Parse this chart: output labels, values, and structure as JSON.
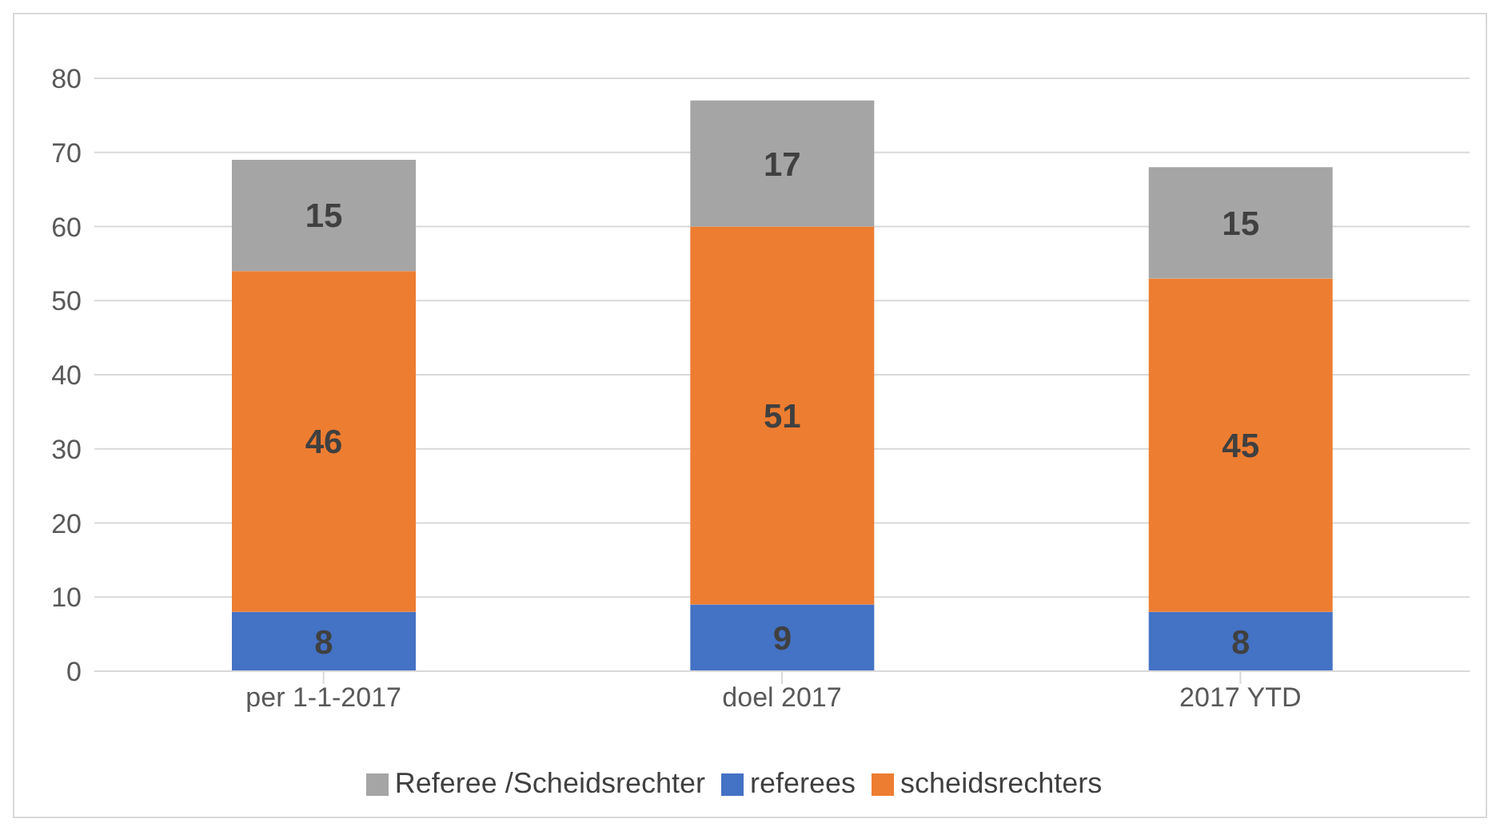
{
  "chart_data": {
    "type": "bar",
    "stacked": true,
    "categories": [
      "per 1-1-2017",
      "doel 2017",
      "2017 YTD"
    ],
    "series": [
      {
        "name": "referees",
        "color": "#4472c4",
        "values": [
          8,
          9,
          8
        ]
      },
      {
        "name": "scheidsrechters",
        "color": "#ed7d31",
        "values": [
          46,
          51,
          45
        ]
      },
      {
        "name": "Referee /Scheidsrechter",
        "color": "#a5a5a5",
        "values": [
          15,
          17,
          15
        ]
      }
    ],
    "ylim": [
      0,
      80
    ],
    "yticks": [
      0,
      10,
      20,
      30,
      40,
      50,
      60,
      70,
      80
    ],
    "grid": "y",
    "legend": "bottom",
    "data_labels": true
  }
}
